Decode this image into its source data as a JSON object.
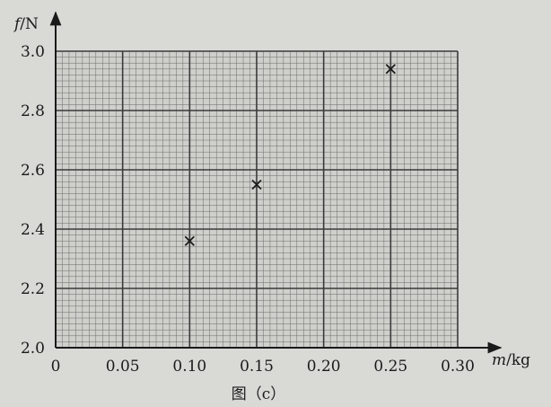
{
  "chart_data": {
    "type": "scatter",
    "xlabel": {
      "symbol": "m",
      "unit": "/kg"
    },
    "ylabel": {
      "symbol": "f",
      "unit": "/N"
    },
    "xlim": [
      0,
      0.3
    ],
    "ylim": [
      2.0,
      3.0
    ],
    "x_ticks": [
      0,
      0.05,
      0.1,
      0.15,
      0.2,
      0.25,
      0.3
    ],
    "x_tick_labels": [
      "0",
      "0.05",
      "0.10",
      "0.15",
      "0.20",
      "0.25",
      "0.30"
    ],
    "y_ticks": [
      2.0,
      2.2,
      2.4,
      2.6,
      2.8,
      3.0
    ],
    "y_tick_labels": [
      "2.0",
      "2.2",
      "2.4",
      "2.6",
      "2.8",
      "3.0"
    ],
    "grid": true,
    "marker": "×",
    "points": [
      {
        "x": 0.1,
        "y": 2.36
      },
      {
        "x": 0.15,
        "y": 2.55
      },
      {
        "x": 0.25,
        "y": 2.94
      }
    ],
    "caption": "图（c）",
    "colors": {
      "ink": "#1a1a1a",
      "grid": "#3a3a3a",
      "paper": "#d9d9d6"
    }
  }
}
